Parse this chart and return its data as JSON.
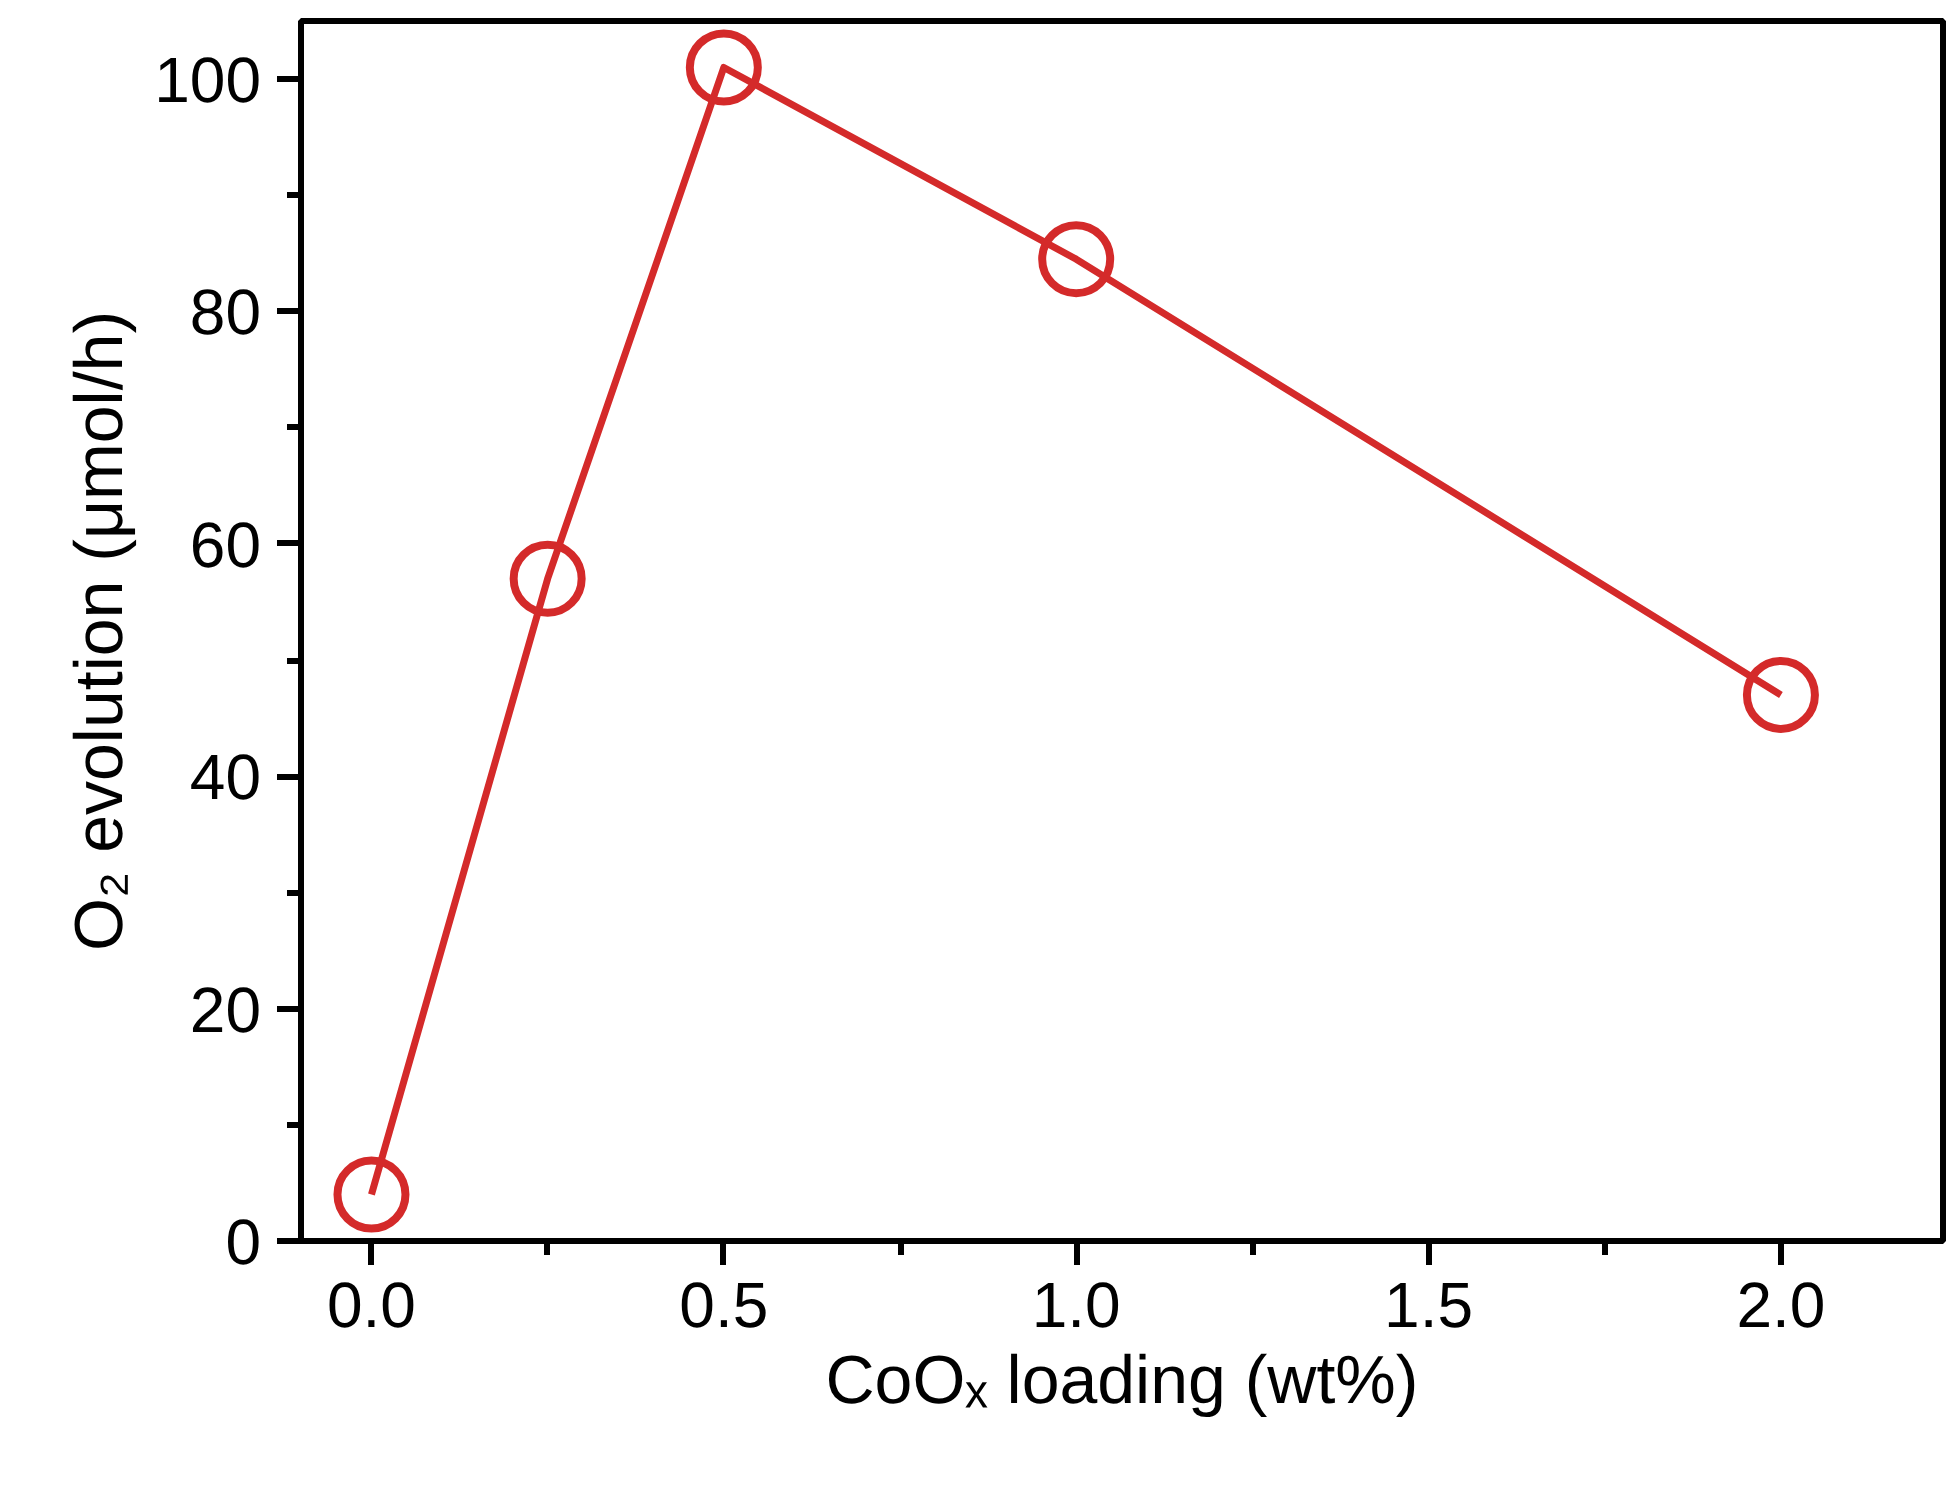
{
  "chart_data": {
    "type": "line",
    "xlabel": "CoOₓ loading (wt%)",
    "ylabel": "O₂ evolution (μmol/h)",
    "x": [
      0,
      0.25,
      0.5,
      1.0,
      2.0
    ],
    "series": [
      {
        "color": "#d42a2a",
        "values": [
          4,
          57,
          101,
          84.5,
          47
        ]
      }
    ],
    "xlim": [
      -0.1,
      2.23
    ],
    "ylim": [
      0,
      105
    ],
    "xticks": [
      {
        "value": 0,
        "label": "0.0"
      },
      {
        "value": 0.5,
        "label": "0.5"
      },
      {
        "value": 1,
        "label": "1.0"
      },
      {
        "value": 1.5,
        "label": "1.5"
      },
      {
        "value": 2,
        "label": "2.0"
      }
    ],
    "yticks": [
      0,
      20,
      40,
      60,
      80,
      100
    ],
    "marker": "circle",
    "line_style": "solid",
    "grid": false
  }
}
